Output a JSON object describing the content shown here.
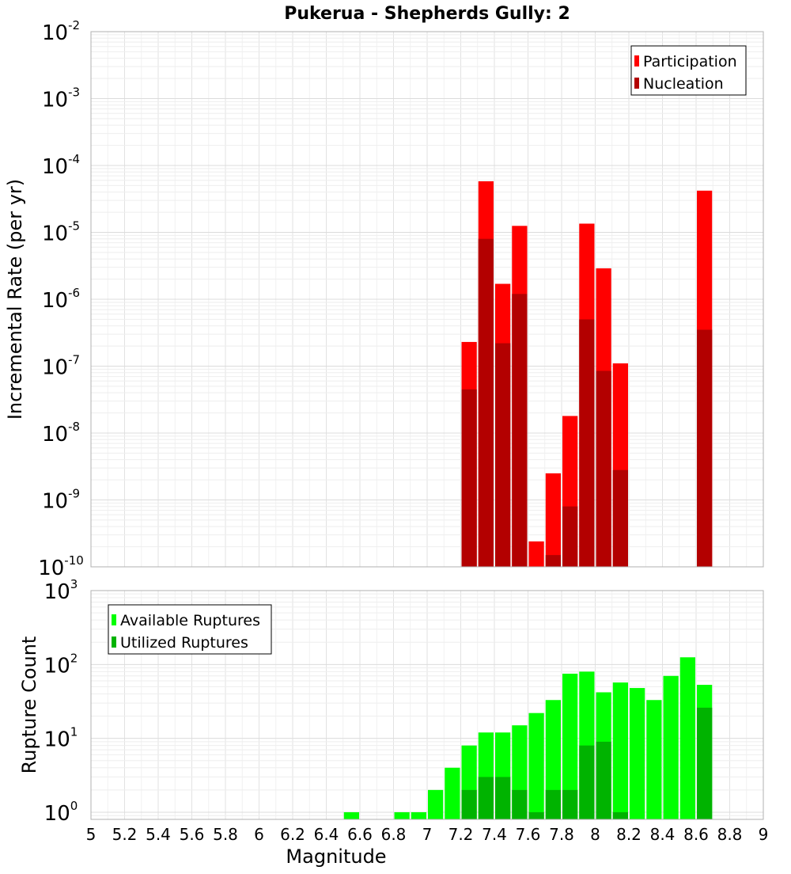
{
  "chart_data": [
    {
      "type": "bar",
      "title": "Pukerua - Shepherds Gully: 2",
      "xlabel": "",
      "ylabel": "Incremental Rate (per yr)",
      "yscale": "log",
      "ylim": [
        1e-10,
        0.01
      ],
      "xlim": [
        5,
        9
      ],
      "bar_width": 0.1,
      "grid": true,
      "legend_position": "top-right",
      "y_tick_labels": [
        {
          "base": "10",
          "exp": "-10"
        },
        {
          "base": "10",
          "exp": "-9"
        },
        {
          "base": "10",
          "exp": "-8"
        },
        {
          "base": "10",
          "exp": "-7"
        },
        {
          "base": "10",
          "exp": "-6"
        },
        {
          "base": "10",
          "exp": "-5"
        },
        {
          "base": "10",
          "exp": "-4"
        },
        {
          "base": "10",
          "exp": "-3"
        },
        {
          "base": "10",
          "exp": "-2"
        }
      ],
      "series": [
        {
          "name": "Participation",
          "color": "#ff0000",
          "x": [
            7.25,
            7.35,
            7.45,
            7.55,
            7.65,
            7.75,
            7.85,
            7.95,
            8.05,
            8.15,
            8.65
          ],
          "values": [
            2.3e-07,
            5.8e-05,
            1.7e-06,
            1.25e-05,
            2.4e-10,
            2.5e-09,
            1.8e-08,
            1.35e-05,
            2.9e-06,
            1.1e-07,
            4.2e-05
          ]
        },
        {
          "name": "Nucleation",
          "color": "#b30000",
          "x": [
            7.25,
            7.35,
            7.45,
            7.55,
            7.75,
            7.85,
            7.95,
            8.05,
            8.15,
            8.65
          ],
          "values": [
            4.5e-08,
            8e-06,
            2.2e-07,
            1.2e-06,
            1.5e-10,
            8e-10,
            5e-07,
            8.5e-08,
            2.8e-09,
            3.5e-07
          ]
        }
      ]
    },
    {
      "type": "bar",
      "xlabel": "Magnitude",
      "ylabel": "Rupture Count",
      "yscale": "log",
      "ylim": [
        0.8,
        1000
      ],
      "xlim": [
        5,
        9
      ],
      "bar_width": 0.1,
      "grid": true,
      "legend_position": "top-left",
      "x_ticks": [
        "5",
        "5.2",
        "5.4",
        "5.6",
        "5.8",
        "6",
        "6.2",
        "6.4",
        "6.6",
        "6.8",
        "7",
        "7.2",
        "7.4",
        "7.6",
        "7.8",
        "8",
        "8.2",
        "8.4",
        "8.6",
        "8.8",
        "9"
      ],
      "y_tick_labels": [
        {
          "base": "10",
          "exp": "0"
        },
        {
          "base": "10",
          "exp": "1"
        },
        {
          "base": "10",
          "exp": "2"
        },
        {
          "base": "10",
          "exp": "3"
        }
      ],
      "series": [
        {
          "name": "Available Ruptures",
          "color": "#00ff00",
          "x": [
            6.55,
            6.85,
            6.95,
            7.05,
            7.15,
            7.25,
            7.35,
            7.45,
            7.55,
            7.65,
            7.75,
            7.85,
            7.95,
            8.05,
            8.15,
            8.25,
            8.35,
            8.45,
            8.55,
            8.65
          ],
          "values": [
            1,
            1,
            1,
            2,
            4,
            8,
            12,
            12,
            15,
            22,
            33,
            75,
            80,
            42,
            57,
            48,
            33,
            70,
            125,
            53
          ]
        },
        {
          "name": "Utilized Ruptures",
          "color": "#00b300",
          "x": [
            7.25,
            7.35,
            7.45,
            7.55,
            7.65,
            7.75,
            7.85,
            7.95,
            8.05,
            8.15,
            8.65
          ],
          "values": [
            2,
            3,
            3,
            2,
            1,
            2,
            2,
            8,
            9,
            1,
            26
          ]
        }
      ]
    }
  ]
}
